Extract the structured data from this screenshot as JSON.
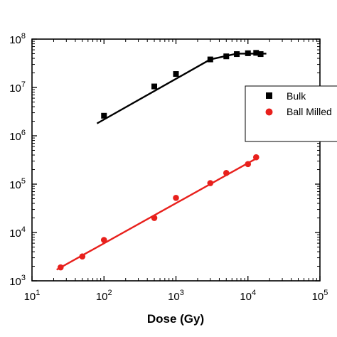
{
  "chart_data": {
    "type": "scatter",
    "xlabel": "Dose (Gy)",
    "ylabel": "",
    "xscale": "log",
    "yscale": "log",
    "xlim": [
      10,
      100000
    ],
    "ylim": [
      1000,
      100000000
    ],
    "x_ticks": [
      {
        "value": 10,
        "base": "10",
        "exp": "1"
      },
      {
        "value": 100,
        "base": "10",
        "exp": "2"
      },
      {
        "value": 1000,
        "base": "10",
        "exp": "3"
      },
      {
        "value": 10000,
        "base": "10",
        "exp": "4"
      },
      {
        "value": 100000,
        "base": "10",
        "exp": "5"
      }
    ],
    "y_ticks": [
      {
        "value": 1000,
        "base": "10",
        "exp": "3"
      },
      {
        "value": 10000,
        "base": "10",
        "exp": "4"
      },
      {
        "value": 100000,
        "base": "10",
        "exp": "5"
      },
      {
        "value": 1000000,
        "base": "10",
        "exp": "6"
      },
      {
        "value": 10000000,
        "base": "10",
        "exp": "7"
      },
      {
        "value": 100000000,
        "base": "10",
        "exp": "8"
      }
    ],
    "grid": false,
    "legend_position": "right",
    "series": [
      {
        "name": "Bulk",
        "marker": "square",
        "color": "#000000",
        "x": [
          100,
          500,
          1000,
          3000,
          5000,
          7000,
          10000,
          13000,
          15000
        ],
        "y": [
          2600000,
          10500000,
          19000000,
          38000000,
          44000000,
          49000000,
          51000000,
          52000000,
          49000000
        ],
        "fit": {
          "x": [
            80,
            3000,
            7000,
            18000
          ],
          "y": [
            1800000,
            38000000,
            50000000,
            50000000
          ]
        }
      },
      {
        "name": "Ball Milled",
        "marker": "circle",
        "color": "#e8201c",
        "x": [
          25,
          50,
          100,
          500,
          1000,
          3000,
          5000,
          10000,
          13000
        ],
        "y": [
          1900,
          3200,
          7000,
          20000,
          52000,
          105000,
          170000,
          260000,
          360000
        ],
        "fit": {
          "x": [
            22,
            14000
          ],
          "y": [
            1700,
            360000
          ]
        }
      }
    ]
  }
}
